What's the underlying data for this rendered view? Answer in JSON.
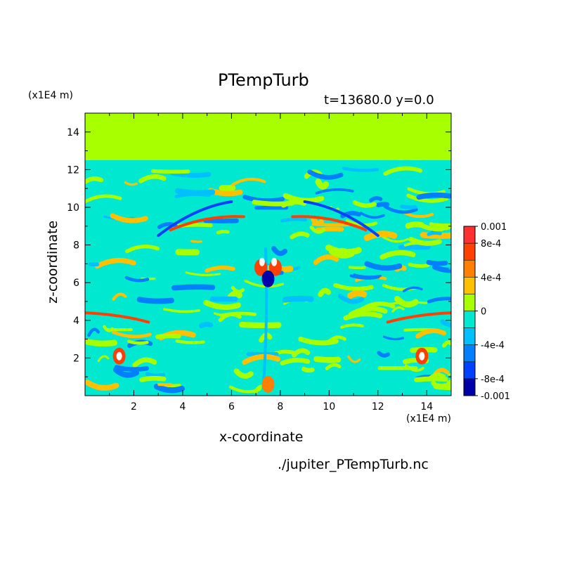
{
  "chart_data": {
    "type": "heatmap",
    "title": "PTempTurb",
    "subtitle": "t=13680.0 y=0.0",
    "xlabel": "x-coordinate",
    "ylabel": "z-coordinate",
    "x_unit": "(x1E4 m)",
    "y_unit": "(x1E4 m)",
    "source_file": "./jupiter_PTempTurb.nc",
    "xlim": [
      0,
      15
    ],
    "ylim": [
      0,
      15
    ],
    "x_ticks": [
      "2",
      "4",
      "6",
      "8",
      "10",
      "12",
      "14"
    ],
    "y_ticks": [
      "2",
      "4",
      "6",
      "8",
      "10",
      "12",
      "14"
    ],
    "colorbar": {
      "range": [
        -0.001,
        0.001
      ],
      "tick_labels": [
        "0.001",
        "8e-4",
        "4e-4",
        "0",
        "-4e-4",
        "-8e-4",
        "-0.001"
      ],
      "colors": [
        "#0000a8",
        "#0040ff",
        "#0080ff",
        "#00c0ff",
        "#00e8d0",
        "#a8ff00",
        "#ffc000",
        "#ff8000",
        "#ff4000",
        "#ff3030"
      ]
    },
    "background_value": "0",
    "turbulent_layer_top": 12.5,
    "notes": "Perturbation potential temperature field; uniform zero above z≈12.5, banded turbulent structures below with strong features near x≈7.5, z≈6–7 and x≈1.5/13.8, z≈2–4"
  }
}
